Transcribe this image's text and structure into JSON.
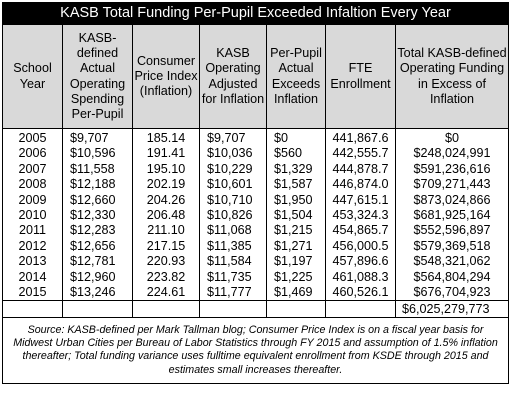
{
  "title": "KASB Total Funding Per-Pupil Exceeded Infaltion Every Year",
  "headers": {
    "school_year": "School Year",
    "kasb_actual": "KASB-defined Actual Operating Spending Per-Pupil",
    "cpi": "Consumer Price Index (Inflation)",
    "kasb_adjusted": "KASB Operating Adjusted for Inflation",
    "per_pupil_exceeds": "Per-Pupil Actual Exceeds Inflation",
    "fte": "FTE Enrollment",
    "total_excess": "Total KASB-defined Operating Funding in Excess of Inflation"
  },
  "rows": [
    {
      "year": "2005",
      "actual": "$9,707",
      "cpi": "185.14",
      "adjusted": "$9,707",
      "exceeds": "$0",
      "fte": "441,867.6",
      "excess": "$0"
    },
    {
      "year": "2006",
      "actual": "$10,596",
      "cpi": "191.41",
      "adjusted": "$10,036",
      "exceeds": "$560",
      "fte": "442,555.7",
      "excess": "$248,024,991"
    },
    {
      "year": "2007",
      "actual": "$11,558",
      "cpi": "195.10",
      "adjusted": "$10,229",
      "exceeds": "$1,329",
      "fte": "444,878.7",
      "excess": "$591,236,616"
    },
    {
      "year": "2008",
      "actual": "$12,188",
      "cpi": "202.19",
      "adjusted": "$10,601",
      "exceeds": "$1,587",
      "fte": "446,874.0",
      "excess": "$709,271,443"
    },
    {
      "year": "2009",
      "actual": "$12,660",
      "cpi": "204.26",
      "adjusted": "$10,710",
      "exceeds": "$1,950",
      "fte": "447,615.1",
      "excess": "$873,024,866"
    },
    {
      "year": "2010",
      "actual": "$12,330",
      "cpi": "206.48",
      "adjusted": "$10,826",
      "exceeds": "$1,504",
      "fte": "453,324.3",
      "excess": "$681,925,164"
    },
    {
      "year": "2011",
      "actual": "$12,283",
      "cpi": "211.10",
      "adjusted": "$11,068",
      "exceeds": "$1,215",
      "fte": "454,865.7",
      "excess": "$552,596,897"
    },
    {
      "year": "2012",
      "actual": "$12,656",
      "cpi": "217.15",
      "adjusted": "$11,385",
      "exceeds": "$1,271",
      "fte": "456,000.5",
      "excess": "$579,369,518"
    },
    {
      "year": "2013",
      "actual": "$12,781",
      "cpi": "220.93",
      "adjusted": "$11,584",
      "exceeds": "$1,197",
      "fte": "457,896.6",
      "excess": "$548,321,062"
    },
    {
      "year": "2014",
      "actual": "$12,960",
      "cpi": "223.82",
      "adjusted": "$11,735",
      "exceeds": "$1,225",
      "fte": "461,088.3",
      "excess": "$564,804,294"
    },
    {
      "year": "2015",
      "actual": "$13,246",
      "cpi": "224.61",
      "adjusted": "$11,777",
      "exceeds": "$1,469",
      "fte": "460,526.1",
      "excess": "$676,704,923"
    }
  ],
  "total": "$6,025,279,773",
  "source": "Source: KASB-defined per Mark Tallman blog; Consumer Price Index is on a fiscal year basis for Midwest Urban Cities per Bureau of Labor Statistics through FY 2015 and assumption of 1.5% inflation thereafter; Total funding variance uses fulltime equivalent enrollment from KSDE through 2015 and estimates small increases thereafter."
}
